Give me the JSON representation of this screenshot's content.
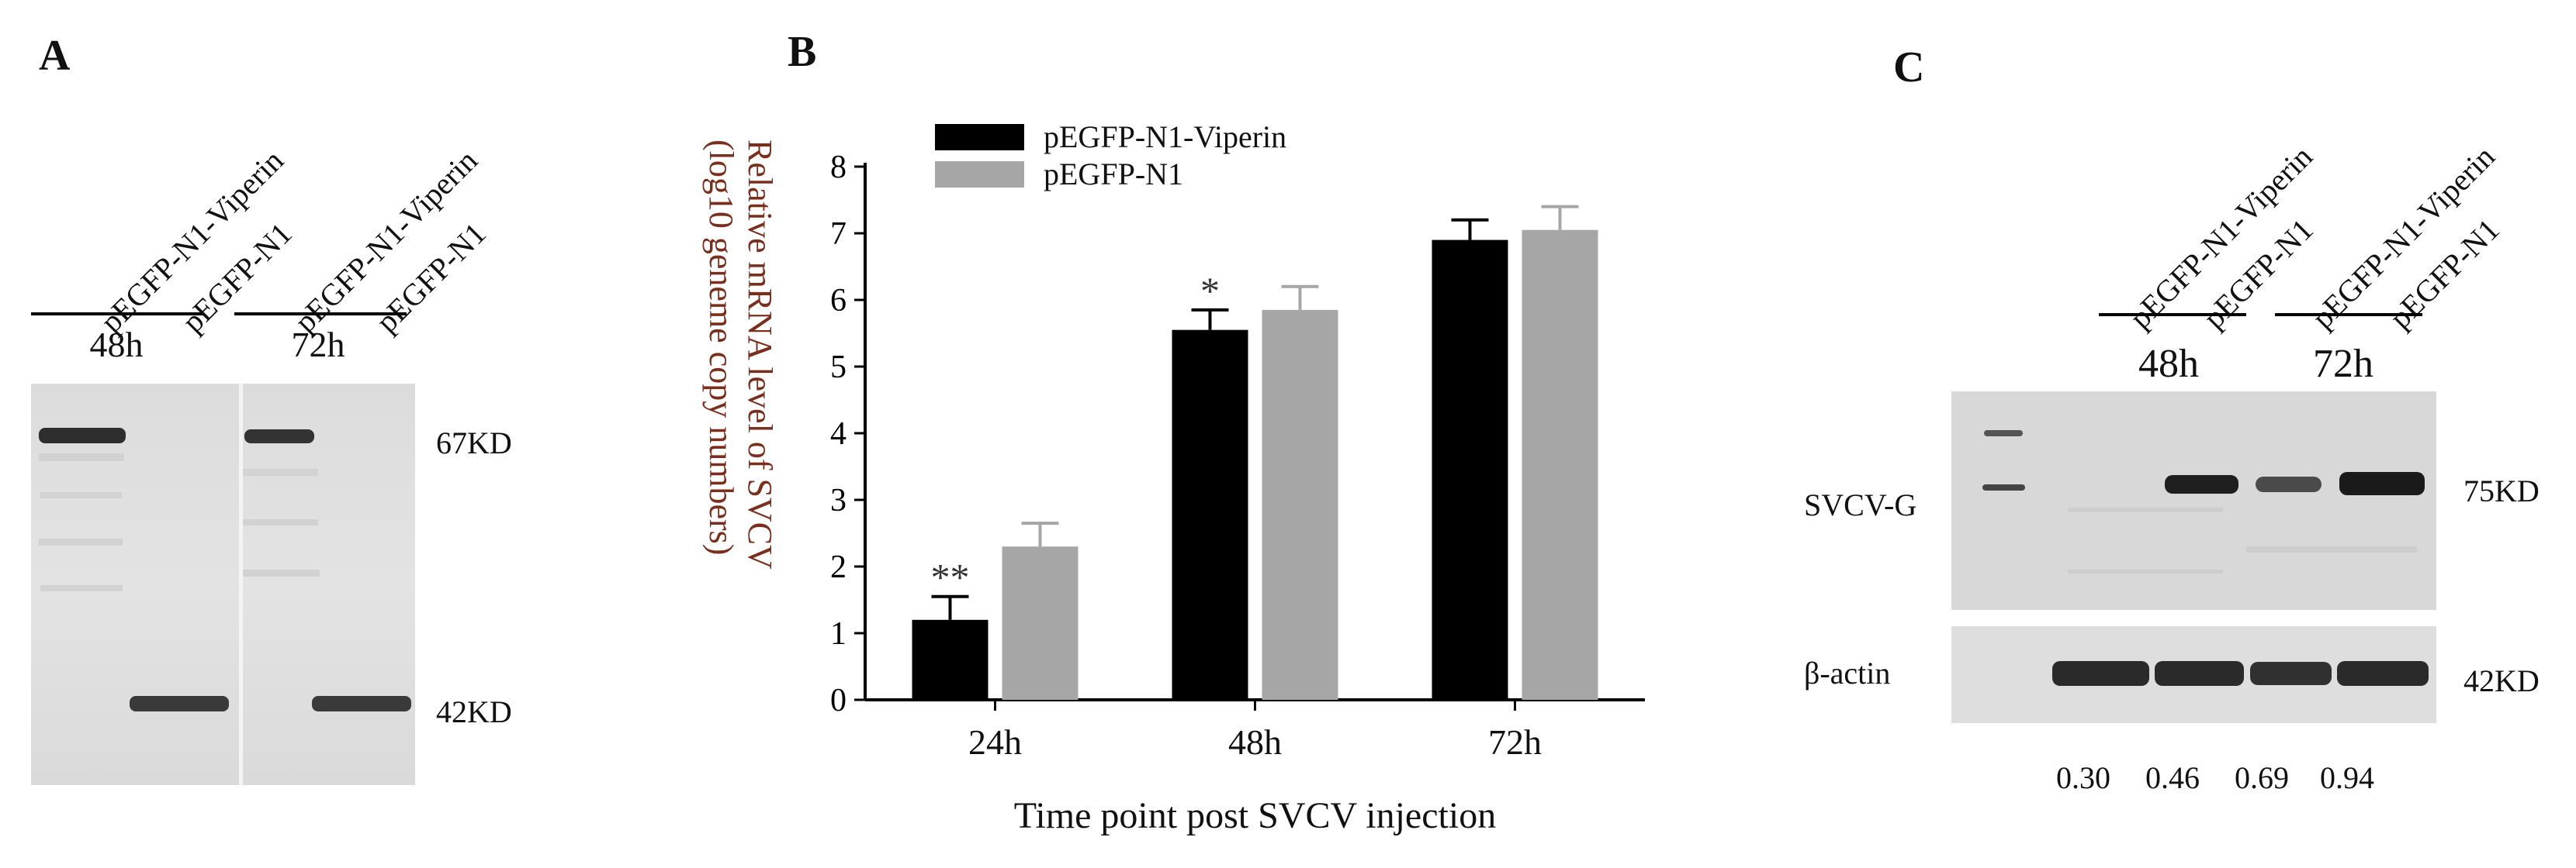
{
  "panel_a": {
    "letter": "A",
    "lanes": [
      "pEGFP-N1-Viperin",
      "pEGFP-N1",
      "pEGFP-N1-Viperin",
      "pEGFP-N1"
    ],
    "times": [
      "48h",
      "72h"
    ],
    "markers": [
      "67KD",
      "42KD"
    ]
  },
  "panel_b": {
    "letter": "B"
  },
  "panel_c": {
    "letter": "C",
    "lanes": [
      "pEGFP-N1-Viperin",
      "pEGFP-N1",
      "pEGFP-N1-Viperin",
      "pEGFP-N1"
    ],
    "times": [
      "48h",
      "72h"
    ],
    "row_labels": [
      "SVCV-G",
      "β-actin"
    ],
    "markers": [
      "75KD",
      "42KD"
    ],
    "ratios": [
      "0.30",
      "0.46",
      "0.69",
      "0.94"
    ]
  },
  "colors": {
    "series1": "#000000",
    "series2": "#a6a6a6"
  },
  "chart_data": {
    "type": "bar",
    "title": "",
    "xlabel": "Time point post SVCV injection",
    "ylabel": "Relative mRNA level of SVCV (log10 geneme copy numbers)",
    "categories": [
      "24h",
      "48h",
      "72h"
    ],
    "ylim": [
      0,
      8
    ],
    "yticks": [
      "0",
      "1",
      "2",
      "3",
      "4",
      "5",
      "6",
      "7",
      "8"
    ],
    "legend_position": "top-left",
    "series": [
      {
        "name": "pEGFP-N1-Viperin",
        "values": [
          1.2,
          5.55,
          6.9
        ],
        "errors": [
          0.35,
          0.3,
          0.3
        ],
        "annotations": [
          "**",
          "*",
          ""
        ]
      },
      {
        "name": "pEGFP-N1",
        "values": [
          2.3,
          5.85,
          7.05
        ],
        "errors": [
          0.35,
          0.35,
          0.35
        ],
        "annotations": [
          "",
          "",
          ""
        ]
      }
    ]
  }
}
